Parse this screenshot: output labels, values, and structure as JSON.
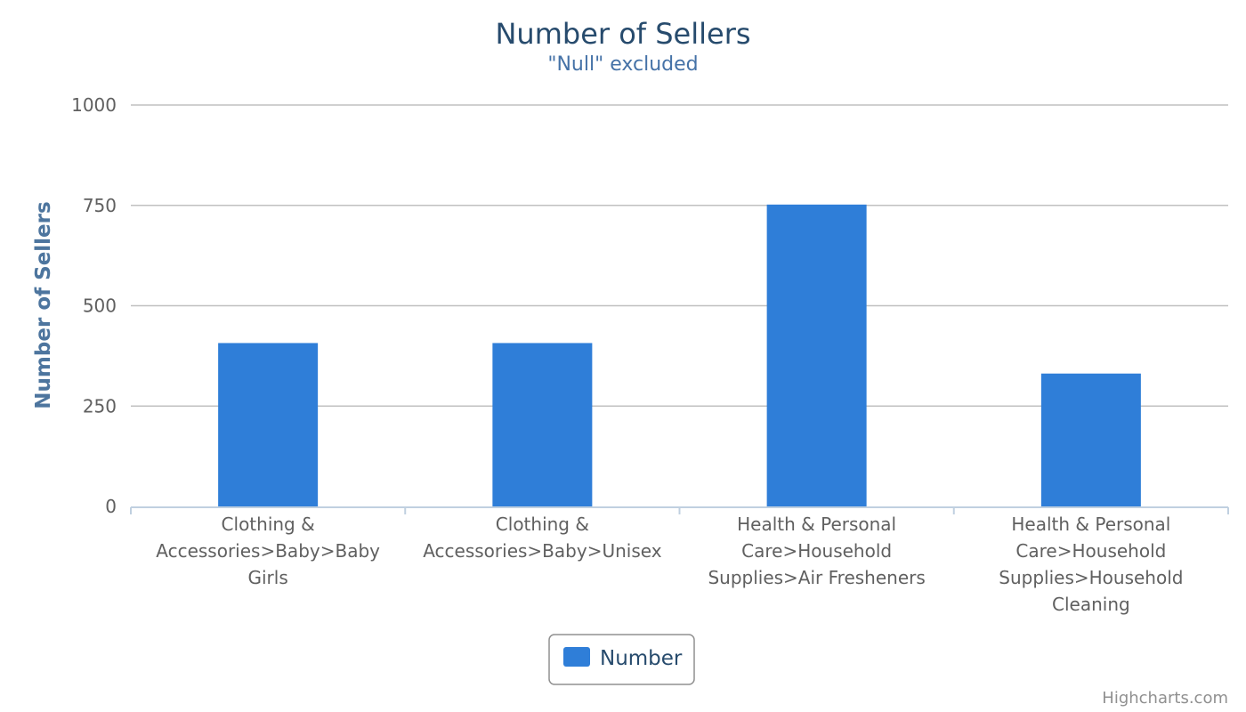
{
  "chart_data": {
    "type": "bar",
    "title": "Number of Sellers",
    "subtitle": "\"Null\" excluded",
    "ylabel": "Number of Sellers",
    "xlabel": "",
    "categories": [
      [
        "Clothing &",
        "Accessories>Baby>Baby",
        "Girls"
      ],
      [
        "Clothing &",
        "Accessories>Baby>Unisex"
      ],
      [
        "Health & Personal",
        "Care>Household",
        "Supplies>Air Fresheners"
      ],
      [
        "Health & Personal",
        "Care>Household",
        "Supplies>Household",
        "Cleaning"
      ]
    ],
    "series": [
      {
        "name": "Number",
        "color": "#2f7ed8",
        "values": [
          407,
          407,
          752,
          331
        ]
      }
    ],
    "ylim": [
      0,
      1000
    ],
    "yticks": [
      0,
      250,
      500,
      750,
      1000
    ],
    "grid": true,
    "legend": "bottom-center",
    "credit": "Highcharts.com"
  }
}
